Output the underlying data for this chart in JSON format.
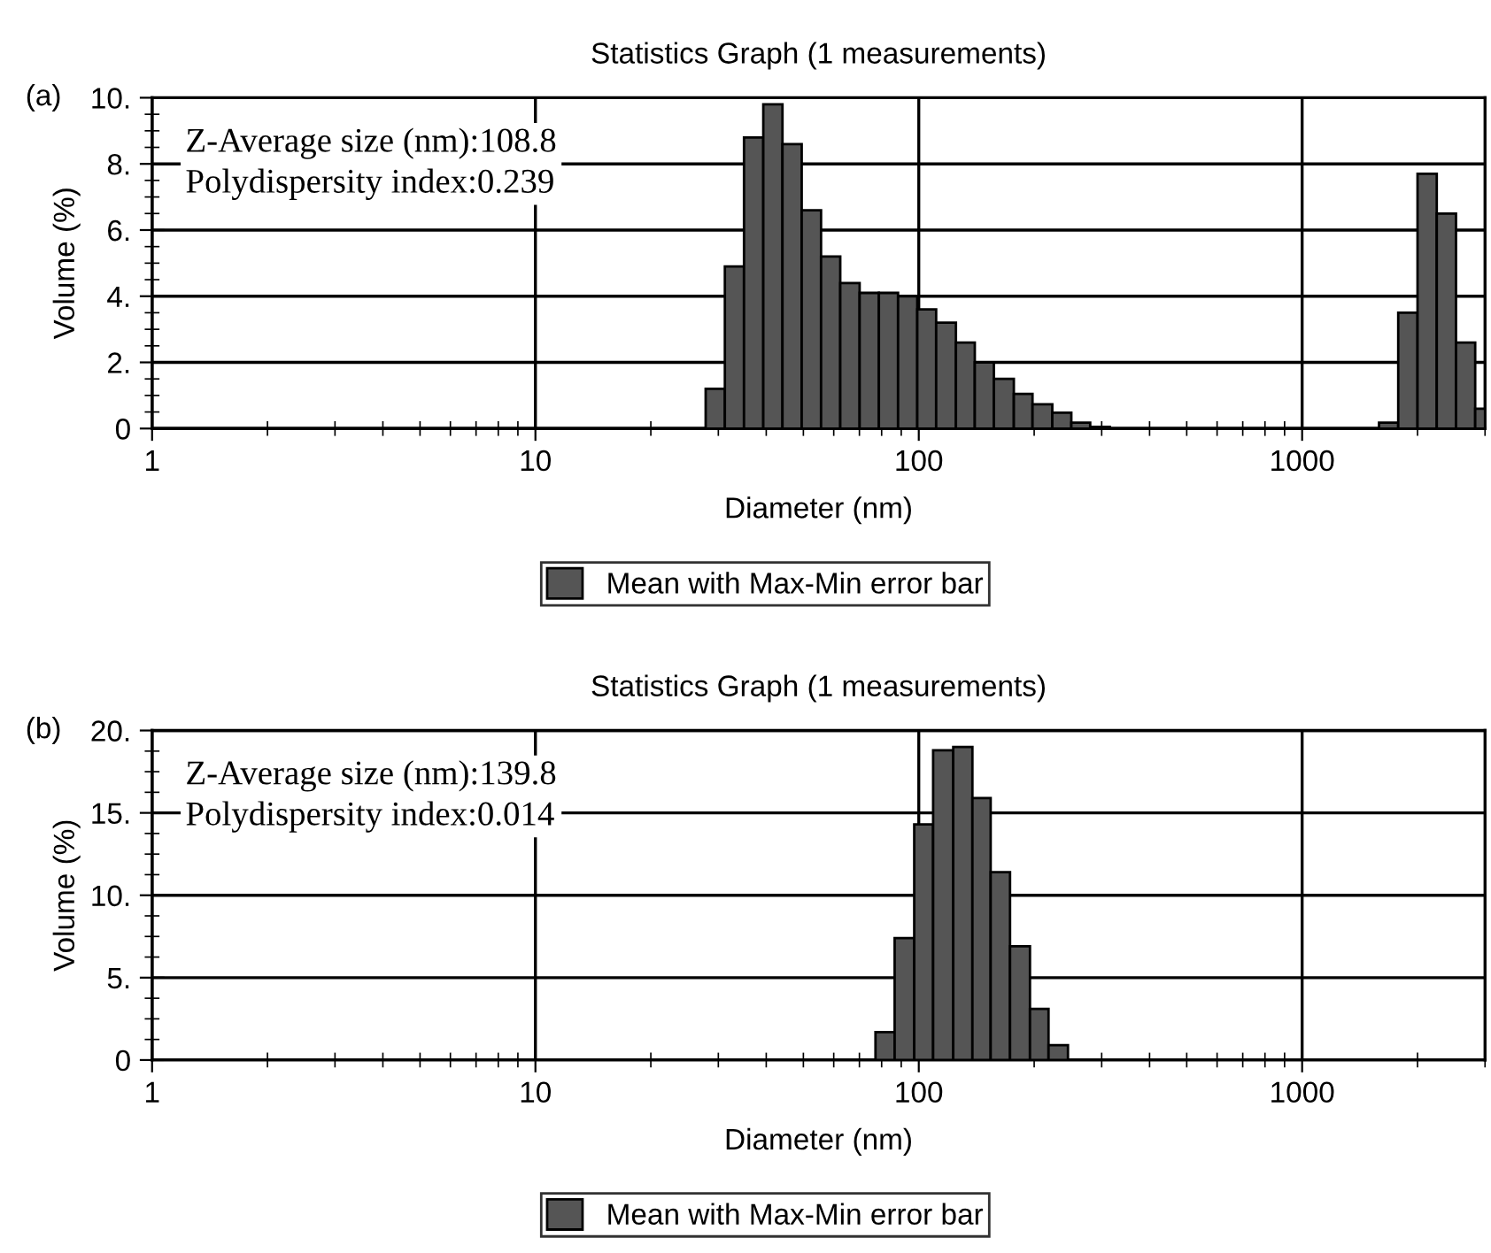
{
  "chart_data": [
    {
      "type": "histogram",
      "title": "Statistics Graph (1 measurements)",
      "xlabel": "Diameter (nm)",
      "ylabel": "Volume (%)",
      "annotations": [
        "(a)",
        "Z-Average size (nm):108.8\nPolydispersity index:0.239"
      ],
      "bins": [
        27.8,
        31.2,
        35.0,
        39.3,
        44.1,
        49.5,
        55.6,
        62.4,
        70.1,
        78.7,
        88.3,
        99.1,
        111,
        125,
        140,
        157,
        177,
        198,
        223,
        250,
        280,
        315,
        1587,
        1781,
        2000,
        2245,
        2520,
        2828,
        3000
      ],
      "series": [
        {
          "name": "Mean with Max-Min error bar",
          "color": "#555555",
          "values": [
            1.2,
            4.9,
            8.8,
            9.8,
            8.6,
            6.6,
            5.2,
            4.4,
            4.1,
            4.1,
            4.0,
            3.6,
            3.2,
            2.6,
            2.0,
            1.5,
            1.05,
            0.73,
            0.48,
            0.18,
            0.05,
            0,
            0.18,
            3.5,
            7.7,
            6.5,
            2.6,
            0.6
          ]
        }
      ],
      "log": "x",
      "xlim": [
        1,
        3000
      ],
      "xticks": [
        1,
        10,
        100,
        1000
      ],
      "ylim": [
        0,
        10
      ],
      "yticks": [
        0,
        {
          "value": 2,
          "label": "2."
        },
        {
          "value": 4,
          "label": "4."
        },
        {
          "value": 6,
          "label": "6."
        },
        {
          "value": 8,
          "label": "8."
        },
        {
          "value": 10,
          "label": "10."
        }
      ],
      "grid": true,
      "legend": "bottom"
    },
    {
      "type": "histogram",
      "title": "Statistics Graph (1 measurements)",
      "xlabel": "Diameter (nm)",
      "ylabel": "Volume (%)",
      "annotations": [
        "(b)",
        "Z-Average size (nm):139.8\nPolydispersity index:0.014"
      ],
      "bins": [
        77.1,
        86.5,
        97.3,
        109,
        123,
        138,
        154,
        173,
        195,
        218,
        245
      ],
      "series": [
        {
          "name": "Mean with Max-Min error bar",
          "color": "#555555",
          "values": [
            1.7,
            7.4,
            14.3,
            18.8,
            19.0,
            15.9,
            11.4,
            6.9,
            3.1,
            0.9
          ]
        }
      ],
      "log": "x",
      "xlim": [
        1,
        3000
      ],
      "xticks": [
        1,
        10,
        100,
        1000
      ],
      "ylim": [
        0,
        20
      ],
      "yticks": [
        0,
        {
          "value": 5,
          "label": "5."
        },
        {
          "value": 10,
          "label": "10."
        },
        {
          "value": 15,
          "label": "15."
        },
        {
          "value": 20,
          "label": "20."
        }
      ],
      "grid": true,
      "legend": "bottom"
    }
  ]
}
